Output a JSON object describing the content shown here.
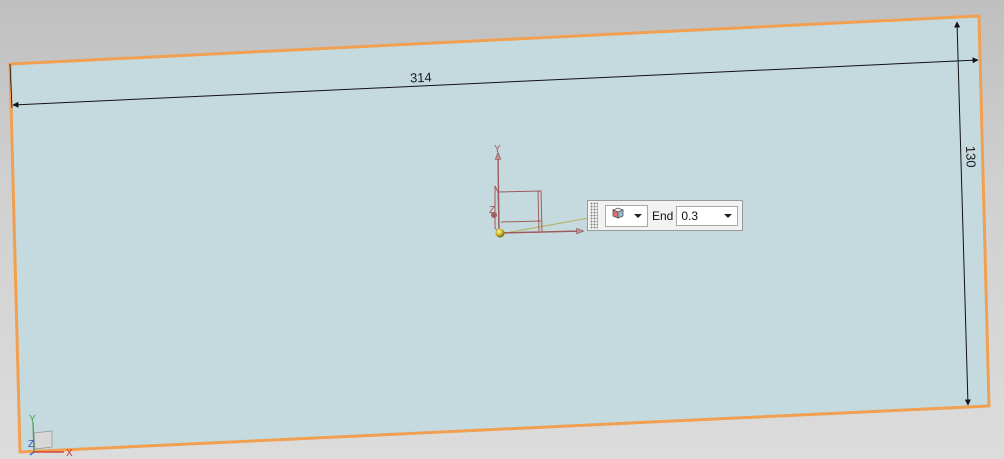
{
  "dimensions": {
    "length": "314",
    "width": "130"
  },
  "dynamic_input": {
    "type_icon": "block-icon",
    "end_label": "End",
    "end_value": "0.3"
  },
  "triad": {
    "x": "X",
    "y": "Y",
    "z": "Z"
  },
  "colors": {
    "sheet_fill": "#c5dadf",
    "sheet_edge": "#f0a050",
    "csys": "#a05a5a"
  }
}
